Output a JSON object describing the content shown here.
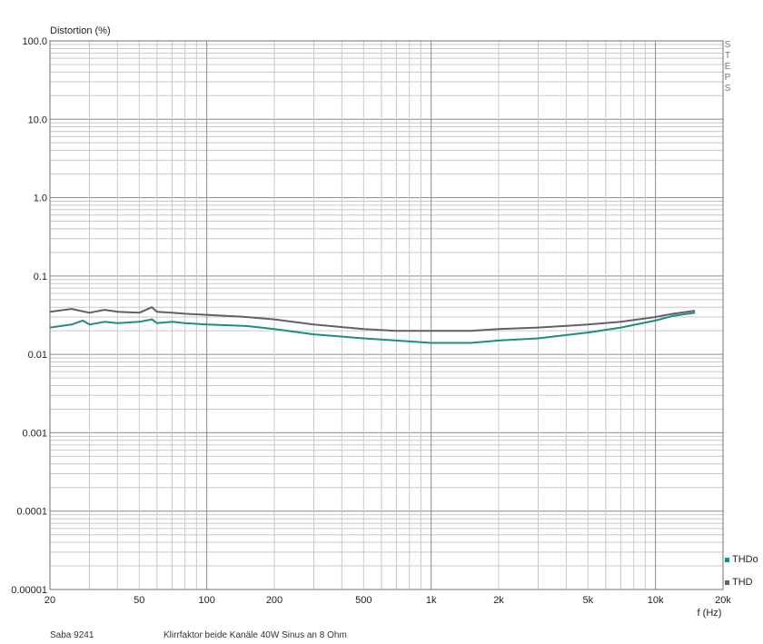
{
  "chart_data": {
    "type": "line",
    "ylabel": "Distortion (%)",
    "xlabel": "f (Hz)",
    "x_scale": "log",
    "y_scale": "log",
    "xlim": [
      20,
      20000
    ],
    "ylim": [
      1e-05,
      100
    ],
    "grid": true,
    "right_label": "STEPS",
    "y_ticks": [
      "100.0",
      "10.0",
      "1.0",
      "0.1",
      "0.01",
      "0.001",
      "0.0001",
      "0.00001"
    ],
    "y_tick_values": [
      100,
      10,
      1,
      0.1,
      0.01,
      0.001,
      0.0001,
      1e-05
    ],
    "x_ticks": [
      "20",
      "50",
      "100",
      "200",
      "500",
      "1k",
      "2k",
      "5k",
      "10k",
      "20k"
    ],
    "x_tick_values": [
      20,
      50,
      100,
      200,
      500,
      1000,
      2000,
      5000,
      10000,
      20000
    ],
    "series": [
      {
        "name": "THD",
        "color": "#6b5a6e",
        "x": [
          20,
          25,
          30,
          35,
          40,
          50,
          57,
          60,
          70,
          80,
          100,
          150,
          200,
          300,
          500,
          700,
          1000,
          1500,
          2000,
          3000,
          5000,
          7000,
          10000,
          12000,
          15000
        ],
        "y": [
          0.035,
          0.038,
          0.034,
          0.037,
          0.035,
          0.034,
          0.04,
          0.035,
          0.034,
          0.033,
          0.032,
          0.03,
          0.028,
          0.024,
          0.021,
          0.02,
          0.02,
          0.02,
          0.021,
          0.022,
          0.024,
          0.026,
          0.03,
          0.033,
          0.036
        ]
      },
      {
        "name": "THDo",
        "color": "#1e8c84",
        "x": [
          20,
          25,
          28,
          30,
          35,
          40,
          50,
          57,
          60,
          70,
          80,
          100,
          150,
          200,
          300,
          500,
          700,
          1000,
          1500,
          2000,
          3000,
          5000,
          7000,
          10000,
          12000,
          15000
        ],
        "y": [
          0.022,
          0.024,
          0.027,
          0.024,
          0.026,
          0.025,
          0.026,
          0.028,
          0.025,
          0.026,
          0.025,
          0.024,
          0.023,
          0.021,
          0.018,
          0.016,
          0.015,
          0.014,
          0.014,
          0.015,
          0.016,
          0.019,
          0.022,
          0.027,
          0.031,
          0.034
        ]
      }
    ],
    "legend": {
      "placement": "right-bottom",
      "items": [
        {
          "label": "THDo",
          "color": "#1e8c84"
        },
        {
          "label": "THD",
          "color": "#6b5a6e"
        }
      ]
    }
  },
  "footer": {
    "device": "Saba 9241",
    "description": "Klirrfaktor beide Kanäle 40W Sinus an 8 Ohm"
  }
}
